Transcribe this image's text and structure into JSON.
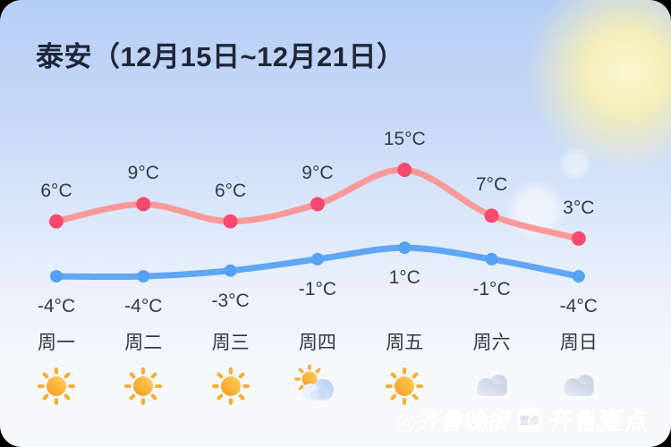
{
  "title": "泰安（12月15日~12月21日）",
  "chart_data": {
    "type": "line",
    "title": "泰安（12月15日~12月21日）",
    "categories": [
      "周一",
      "周二",
      "周三",
      "周四",
      "周五",
      "周六",
      "周日"
    ],
    "unit": "°C",
    "series": [
      {
        "name": "high",
        "color": "#f99a9a",
        "point_color": "#f84a6f",
        "values": [
          6,
          9,
          6,
          9,
          15,
          7,
          3
        ],
        "labels": [
          "6°C",
          "9°C",
          "6°C",
          "9°C",
          "15°C",
          "7°C",
          "3°C"
        ]
      },
      {
        "name": "low",
        "color": "#5fa6f4",
        "point_color": "#55a1f3",
        "values": [
          -4,
          -4,
          -3,
          -1,
          1,
          -1,
          -4
        ],
        "labels": [
          "-4°C",
          "-4°C",
          "-3°C",
          "-1°C",
          "1°C",
          "-1°C",
          "-4°C"
        ]
      }
    ],
    "icons": [
      "sunny",
      "sunny",
      "sunny",
      "partly-cloudy",
      "sunny",
      "cloudy",
      "cloudy"
    ],
    "grid": false,
    "legend": "none"
  },
  "watermark": {
    "press_prefix": "◎",
    "press_name": "齐鲁晚报",
    "badge": "壹点",
    "app_name": "齐鲁壹点"
  }
}
